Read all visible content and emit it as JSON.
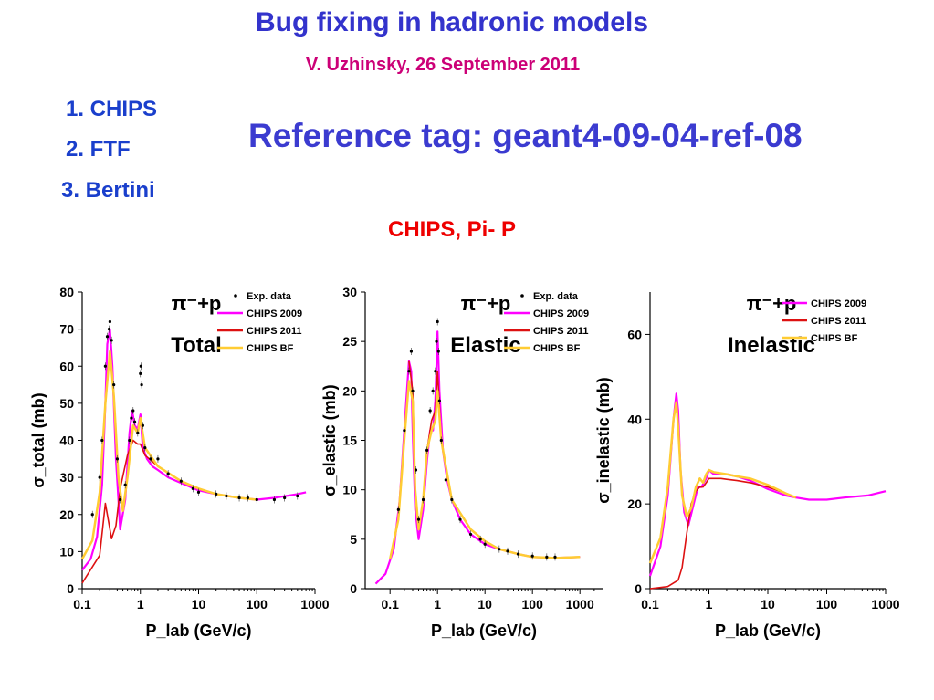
{
  "slide": {
    "title": "Bug fixing in hadronic models",
    "author_line": "V. Uzhinsky, 26 September 2011",
    "items": [
      "1. CHIPS",
      "2. FTF",
      "3. Bertini"
    ],
    "reference": "Reference tag: geant4-09-04-ref-08",
    "subtitle": "CHIPS,  Pi- P"
  },
  "colors": {
    "title": "#3333cc",
    "author": "#cc0077",
    "items": "#1a3fcc",
    "reference": "#3b3bd0",
    "subtitle": "#ee0000",
    "exp": "#000000",
    "chips2009": "#ff00ff",
    "chips2011": "#dd1111",
    "chipsbf": "#ffcc33"
  },
  "chart_data": [
    {
      "type": "line",
      "panel_label": "Total",
      "reaction": "π⁻+p",
      "xlabel": "P_lab (GeV/c)",
      "xscale": "log",
      "xlim": [
        0.1,
        1000
      ],
      "xticks": [
        "0.1",
        "1",
        "10",
        "100",
        "1000"
      ],
      "ylabel": "σ_total (mb)",
      "ylim": [
        0,
        80
      ],
      "yticks": [
        "0",
        "10",
        "20",
        "30",
        "40",
        "50",
        "60",
        "70",
        "80"
      ],
      "legend": [
        "Exp. data",
        "CHIPS 2009",
        "CHIPS 2011",
        "CHIPS BF"
      ],
      "series": [
        {
          "name": "CHIPS 2009",
          "color": "#ff00ff",
          "x": [
            0.1,
            0.14,
            0.18,
            0.22,
            0.25,
            0.27,
            0.3,
            0.33,
            0.38,
            0.45,
            0.55,
            0.65,
            0.72,
            0.8,
            0.9,
            1.0,
            1.1,
            1.3,
            1.6,
            2,
            3,
            5,
            10,
            20,
            50,
            100,
            200,
            500,
            700
          ],
          "y": [
            5,
            8,
            14,
            28,
            50,
            66,
            70,
            60,
            35,
            16,
            24,
            42,
            48,
            44,
            43,
            47,
            38,
            35,
            33,
            32,
            30,
            28.5,
            26.5,
            25.5,
            24.5,
            24,
            24.5,
            25.5,
            26
          ]
        },
        {
          "name": "CHIPS 2011",
          "color": "#dd1111",
          "x": [
            0.1,
            0.2,
            0.25,
            0.32,
            0.38,
            0.45,
            0.6,
            0.75,
            0.9,
            1.0,
            1.2,
            2,
            5,
            10,
            20,
            50,
            100
          ],
          "y": [
            1.5,
            9,
            23,
            13.5,
            17,
            27,
            36,
            40,
            39,
            39,
            36,
            33,
            29,
            27,
            25.5,
            24.5,
            24
          ]
        },
        {
          "name": "CHIPS BF",
          "color": "#ffcc33",
          "x": [
            0.1,
            0.15,
            0.2,
            0.25,
            0.3,
            0.35,
            0.42,
            0.5,
            0.6,
            0.75,
            0.9,
            1.0,
            1.2,
            2,
            5,
            10,
            20,
            50,
            100
          ],
          "y": [
            8,
            13,
            26,
            50,
            64,
            52,
            30,
            21,
            30,
            44,
            42,
            46,
            38,
            33,
            29,
            27,
            25.5,
            24.5,
            24
          ]
        },
        {
          "name": "Exp. data",
          "type": "scatter",
          "color": "#000000",
          "x": [
            0.15,
            0.2,
            0.22,
            0.25,
            0.27,
            0.29,
            0.3,
            0.32,
            0.35,
            0.4,
            0.45,
            0.55,
            0.65,
            0.7,
            0.75,
            0.8,
            0.9,
            1.0,
            1.02,
            1.05,
            1.1,
            1.2,
            1.5,
            2,
            3,
            5,
            8,
            10,
            20,
            30,
            50,
            70,
            100,
            200,
            300,
            500
          ],
          "y": [
            20,
            30,
            40,
            60,
            68,
            70,
            72,
            67,
            55,
            35,
            24,
            28,
            40,
            46,
            48,
            45,
            42,
            58,
            60,
            55,
            44,
            38,
            35,
            35,
            31,
            29,
            27,
            26,
            25.5,
            25,
            24.5,
            24.5,
            24,
            24,
            24.5,
            25
          ]
        }
      ]
    },
    {
      "type": "line",
      "panel_label": "Elastic",
      "reaction": "π⁻+p",
      "xlabel": "P_lab (GeV/c)",
      "xscale": "log",
      "xlim": [
        0.03,
        3000
      ],
      "xticks": [
        "0.1",
        "1",
        "10",
        "100",
        "1000"
      ],
      "ylabel": "σ_elastic (mb)",
      "ylim": [
        0,
        30
      ],
      "yticks": [
        "0",
        "5",
        "10",
        "15",
        "20",
        "25",
        "30"
      ],
      "legend": [
        "Exp. data",
        "CHIPS 2009",
        "CHIPS 2011",
        "CHIPS BF"
      ],
      "series": [
        {
          "name": "CHIPS 2009",
          "color": "#ff00ff",
          "x": [
            0.05,
            0.08,
            0.12,
            0.16,
            0.2,
            0.25,
            0.28,
            0.3,
            0.34,
            0.4,
            0.5,
            0.6,
            0.7,
            0.8,
            0.9,
            1.0,
            1.1,
            1.3,
            1.6,
            2,
            3,
            5,
            10,
            20,
            50,
            100,
            300,
            1000
          ],
          "y": [
            0.5,
            1.5,
            4,
            9,
            16,
            23,
            22,
            16,
            8,
            5,
            8,
            13,
            16,
            16,
            19,
            26,
            20,
            14,
            11,
            9,
            7,
            5.5,
            4.5,
            4,
            3.5,
            3.2,
            3.1,
            3.2
          ]
        },
        {
          "name": "CHIPS 2011",
          "color": "#dd1111",
          "x": [
            0.25,
            0.3,
            0.34,
            0.4,
            0.5,
            0.6,
            0.75,
            0.9,
            1.0,
            1.2,
            2,
            5,
            10,
            20,
            50,
            100,
            300,
            1000
          ],
          "y": [
            23,
            20,
            10,
            6,
            9,
            14,
            17,
            18,
            22,
            15,
            9,
            6,
            4.8,
            4,
            3.5,
            3.2,
            3.1,
            3.2
          ]
        },
        {
          "name": "CHIPS BF",
          "color": "#ffcc33",
          "x": [
            0.1,
            0.15,
            0.2,
            0.25,
            0.3,
            0.34,
            0.4,
            0.5,
            0.6,
            0.75,
            0.9,
            1.0,
            1.2,
            2,
            5,
            10,
            20,
            50,
            100,
            300,
            1000
          ],
          "y": [
            3,
            7,
            15,
            21,
            19,
            10,
            6,
            9,
            14,
            16,
            17,
            20,
            15,
            9,
            6,
            4.8,
            4,
            3.5,
            3.2,
            3.1,
            3.2
          ]
        },
        {
          "name": "Exp. data",
          "type": "scatter",
          "color": "#000000",
          "x": [
            0.15,
            0.2,
            0.25,
            0.28,
            0.3,
            0.35,
            0.4,
            0.5,
            0.6,
            0.7,
            0.8,
            0.9,
            0.95,
            1.0,
            1.05,
            1.1,
            1.2,
            1.5,
            2,
            3,
            5,
            8,
            10,
            20,
            30,
            50,
            100,
            200,
            300
          ],
          "y": [
            8,
            16,
            22,
            24,
            20,
            12,
            7,
            9,
            14,
            18,
            20,
            22,
            25,
            27,
            24,
            19,
            15,
            11,
            9,
            7,
            5.5,
            5,
            4.5,
            4,
            3.8,
            3.5,
            3.3,
            3.2,
            3.2
          ]
        }
      ]
    },
    {
      "type": "line",
      "panel_label": "Inelastic",
      "reaction": "π⁻+p",
      "xlabel": "P_lab (GeV/c)",
      "xscale": "log",
      "xlim": [
        0.1,
        1000
      ],
      "xticks": [
        "0.1",
        "1",
        "10",
        "100",
        "1000"
      ],
      "ylabel": "σ_inelastic (mb)",
      "ylim": [
        0,
        70
      ],
      "yticks": [
        "0",
        "20",
        "40",
        "60"
      ],
      "legend": [
        "CHIPS 2009",
        "CHIPS 2011",
        "CHIPS BF"
      ],
      "series": [
        {
          "name": "CHIPS 2009",
          "color": "#ff00ff",
          "x": [
            0.1,
            0.15,
            0.2,
            0.25,
            0.28,
            0.3,
            0.33,
            0.38,
            0.45,
            0.55,
            0.65,
            0.75,
            0.9,
            1.0,
            1.2,
            1.6,
            2,
            3,
            5,
            10,
            20,
            30,
            50,
            100,
            200,
            500,
            1000
          ],
          "y": [
            3,
            10,
            22,
            40,
            46,
            42,
            28,
            18,
            15,
            20,
            24,
            24,
            26,
            28,
            27,
            27,
            27,
            26.5,
            25.5,
            23.5,
            22,
            21.5,
            21,
            21,
            21.5,
            22,
            23
          ]
        },
        {
          "name": "CHIPS 2011",
          "color": "#dd1111",
          "x": [
            0.1,
            0.2,
            0.3,
            0.35,
            0.42,
            0.5,
            0.6,
            0.7,
            0.8,
            0.9,
            1.0,
            1.2,
            1.6,
            2,
            3,
            5,
            10,
            20,
            30
          ],
          "y": [
            0,
            0.5,
            2,
            5,
            13,
            20,
            23,
            24,
            24,
            25,
            26,
            26,
            26,
            25.8,
            25.5,
            25,
            24,
            22.5,
            21.5
          ]
        },
        {
          "name": "CHIPS BF",
          "color": "#ffcc33",
          "x": [
            0.1,
            0.15,
            0.2,
            0.25,
            0.28,
            0.3,
            0.35,
            0.42,
            0.5,
            0.6,
            0.7,
            0.8,
            0.9,
            1.0,
            1.2,
            2,
            3,
            5,
            10,
            20,
            30
          ],
          "y": [
            6,
            12,
            24,
            40,
            44,
            38,
            22,
            17,
            19,
            24,
            26,
            25,
            27,
            28,
            27.5,
            27,
            26.5,
            26,
            24.5,
            22.5,
            21.5
          ]
        }
      ]
    }
  ]
}
